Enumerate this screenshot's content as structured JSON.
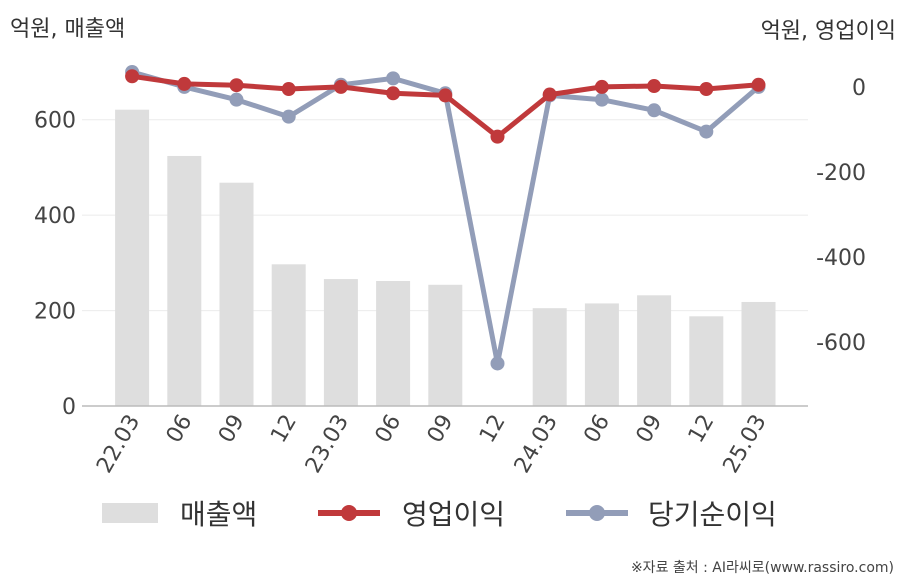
{
  "chart_data": {
    "type": "bar+line",
    "categories": [
      "22.03",
      "06",
      "09",
      "12",
      "23.03",
      "06",
      "09",
      "12",
      "24.03",
      "06",
      "09",
      "12",
      "25.03"
    ],
    "left_axis": {
      "unit_label": "억원, 매출액",
      "ticks": [
        "0",
        "200",
        "400",
        "600"
      ],
      "ylim": [
        0,
        700
      ]
    },
    "right_axis": {
      "unit_label": "억원, 영업이익",
      "ticks": [
        "0",
        "-200",
        "-400",
        "-600"
      ],
      "ylim": [
        -750,
        35
      ]
    },
    "series": [
      {
        "name": "매출액",
        "type": "bar",
        "axis": "left",
        "color": "#dedede",
        "values": [
          621,
          524,
          468,
          297,
          266,
          262,
          254,
          0,
          205,
          215,
          232,
          188,
          218
        ]
      },
      {
        "name": "영업이익",
        "type": "line",
        "axis": "right",
        "color": "#c0393b",
        "values": [
          25,
          7,
          4,
          -5,
          0,
          -15,
          -20,
          -117,
          -18,
          0,
          2,
          -5,
          5
        ]
      },
      {
        "name": "당기순이익",
        "type": "line",
        "axis": "right",
        "color": "#929db8",
        "values": [
          35,
          0,
          -30,
          -70,
          5,
          20,
          -15,
          -650,
          -20,
          -30,
          -55,
          -105,
          0
        ]
      }
    ],
    "legend_placement": "bottom",
    "grid": true
  },
  "source_text": "※자료 출처 : AI라씨로(www.rassiro.com)"
}
